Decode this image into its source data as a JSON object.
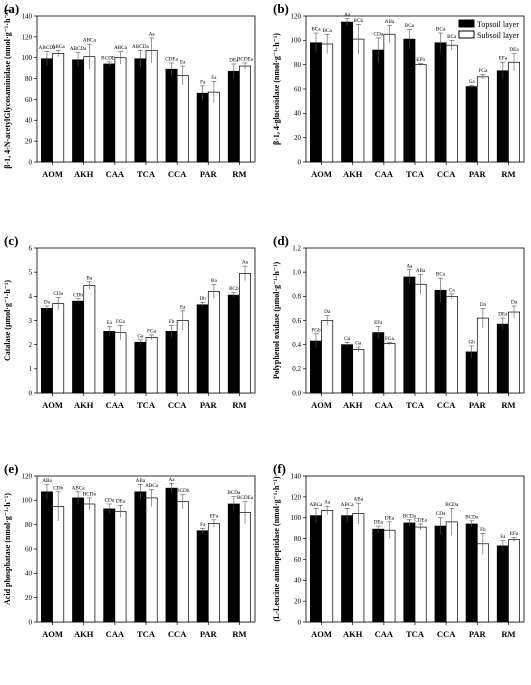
{
  "colors": {
    "topsoil": "#000000",
    "subsoil": "#ffffff",
    "axis": "#000000"
  },
  "legend": {
    "entries": [
      "Topsoil layer",
      "Subsoil layer"
    ],
    "placement": "top-right of panel (b)"
  },
  "chart_data": [
    {
      "type": "bar",
      "panel": "(a)",
      "ylabel": "β-1, 4-N-acetylGlycosaminidase (nmol·g⁻¹·h⁻¹)",
      "ylim": [
        0,
        140
      ],
      "yticks": [
        0,
        20,
        40,
        60,
        80,
        100,
        120,
        140
      ],
      "categories": [
        "AOM",
        "AKH",
        "CAA",
        "TCA",
        "CCA",
        "PAR",
        "RM"
      ],
      "series": [
        {
          "name": "Topsoil layer",
          "values": [
            99,
            98,
            94,
            99,
            89,
            66,
            87
          ],
          "errors": [
            7,
            7,
            2,
            8,
            6,
            7,
            7
          ],
          "letters": [
            "ABCDa",
            "ABCDa",
            "BCDEa",
            "ABCDa",
            "CDEa",
            "Fa",
            "DEa"
          ]
        },
        {
          "name": "Subsoil layer",
          "values": [
            104,
            101,
            100,
            107,
            83,
            67,
            92
          ],
          "errors": [
            3,
            12,
            6,
            12,
            9,
            10,
            3
          ],
          "letters": [
            "ABCa",
            "ABCa",
            "ABCa",
            "Aa",
            "Ea",
            "Fa",
            "BCDEa"
          ]
        }
      ]
    },
    {
      "type": "bar",
      "panel": "(b)",
      "ylabel": "β-1, 4-glucosidase (nmol·g⁻¹·h⁻¹)",
      "ylim": [
        0,
        120
      ],
      "yticks": [
        0,
        20,
        40,
        60,
        80,
        100,
        120
      ],
      "categories": [
        "AOM",
        "AKH",
        "CAA",
        "TCA",
        "CCA",
        "PAR",
        "RM"
      ],
      "series": [
        {
          "name": "Topsoil layer",
          "values": [
            98,
            115,
            92,
            101,
            98,
            62,
            75
          ],
          "errors": [
            8,
            3,
            10,
            8,
            8,
            1,
            7
          ],
          "letters": [
            "BCa",
            "Aa",
            "CDa",
            "BCa",
            "BCa",
            "Ga",
            "EFa"
          ]
        },
        {
          "name": "Subsoil layer",
          "values": [
            97,
            101,
            105,
            80,
            96,
            70,
            82
          ],
          "errors": [
            8,
            12,
            7,
            1,
            4,
            2,
            7
          ],
          "letters": [
            "BCa",
            "BCb",
            "ABa",
            "EFb",
            "BCa",
            "FGa",
            "DEa"
          ]
        }
      ]
    },
    {
      "type": "bar",
      "panel": "(c)",
      "ylabel": "Catalase (μmol·g⁻¹·h⁻¹)",
      "ylim": [
        0,
        6
      ],
      "yticks": [
        0,
        1,
        2,
        3,
        4,
        5,
        6
      ],
      "categories": [
        "AOM",
        "AKH",
        "CAA",
        "TCA",
        "CCA",
        "PAR",
        "RM"
      ],
      "series": [
        {
          "name": "Topsoil layer",
          "values": [
            3.5,
            3.8,
            2.55,
            2.1,
            2.55,
            3.65,
            4.05
          ],
          "errors": [
            0.1,
            0.1,
            0.2,
            0.1,
            0.25,
            0.1,
            0.1
          ],
          "letters": [
            "Da",
            "CDb",
            "Fa",
            "Ga",
            "Fb",
            "Db",
            "BCb"
          ]
        },
        {
          "name": "Subsoil layer",
          "values": [
            3.7,
            4.45,
            2.5,
            2.3,
            3.0,
            4.2,
            4.95
          ],
          "errors": [
            0.25,
            0.15,
            0.3,
            0.1,
            0.4,
            0.3,
            0.3
          ],
          "letters": [
            "CDa",
            "Ba",
            "FGa",
            "FGa",
            "Ea",
            "Ba",
            "Aa"
          ]
        }
      ]
    },
    {
      "type": "bar",
      "panel": "(d)",
      "ylabel": "Polyphenol oxidase (μmol·g⁻¹·h⁻¹)",
      "ylim": [
        0,
        1.2
      ],
      "yticks": [
        0.0,
        0.2,
        0.4,
        0.6,
        0.8,
        1.0,
        1.2
      ],
      "categories": [
        "AOM",
        "AKH",
        "CAA",
        "TCA",
        "CCA",
        "PAR",
        "RM"
      ],
      "series": [
        {
          "name": "Topsoil layer",
          "values": [
            0.43,
            0.4,
            0.5,
            0.96,
            0.85,
            0.34,
            0.57
          ],
          "errors": [
            0.06,
            0.02,
            0.05,
            0.06,
            0.1,
            0.05,
            0.05
          ],
          "letters": [
            "FGb",
            "Ga",
            "EFa",
            "Aa",
            "BCa",
            "Gb",
            "DEa"
          ]
        },
        {
          "name": "Subsoil layer",
          "values": [
            0.6,
            0.36,
            0.41,
            0.9,
            0.8,
            0.62,
            0.67
          ],
          "errors": [
            0.04,
            0.02,
            0.01,
            0.08,
            0.02,
            0.08,
            0.05
          ],
          "letters": [
            "Da",
            "Ga",
            "FGa",
            "ABa",
            "Ca",
            "Da",
            "Da"
          ]
        }
      ]
    },
    {
      "type": "bar",
      "panel": "(e)",
      "ylabel": "Acid phosphatase (nmol·g⁻¹·h⁻¹)",
      "ylim": [
        0,
        120
      ],
      "yticks": [
        0,
        20,
        40,
        60,
        80,
        100,
        120
      ],
      "categories": [
        "AOM",
        "AKH",
        "CAA",
        "TCA",
        "CCA",
        "PAR",
        "RM"
      ],
      "series": [
        {
          "name": "Topsoil layer",
          "values": [
            107,
            102,
            93,
            107,
            110,
            75,
            97
          ],
          "errors": [
            6,
            5,
            4,
            6,
            4,
            2,
            6
          ],
          "letters": [
            "ABa",
            "ABCa",
            "CDa",
            "ABa",
            "Aa",
            "Fa",
            "BCDa"
          ]
        },
        {
          "name": "Subsoil layer",
          "values": [
            95,
            97,
            91,
            102,
            99,
            81,
            90
          ],
          "errors": [
            12,
            5,
            5,
            7,
            6,
            3,
            9
          ],
          "letters": [
            "CDb",
            "BCDa",
            "DEa",
            "ABCa",
            "BCDb",
            "EFa",
            "BCDEa"
          ]
        }
      ]
    },
    {
      "type": "bar",
      "panel": "(f)",
      "ylabel": "(L-Leucine aminopeptidase (nmol·g⁻¹·h⁻¹)",
      "ylim": [
        0,
        140
      ],
      "yticks": [
        0,
        20,
        40,
        60,
        80,
        100,
        120,
        140
      ],
      "categories": [
        "AOM",
        "AKH",
        "CAA",
        "TCA",
        "CCA",
        "PAR",
        "RM"
      ],
      "series": [
        {
          "name": "Topsoil layer",
          "values": [
            102,
            102,
            89,
            95,
            92,
            94,
            73
          ],
          "errors": [
            7,
            7,
            3,
            3,
            8,
            3,
            5
          ],
          "letters": [
            "ABCa",
            "ABCa",
            "DEa",
            "BCDa",
            "CDa",
            "BCDa",
            "Fa"
          ]
        },
        {
          "name": "Subsoil layer",
          "values": [
            107,
            104,
            88,
            91,
            96,
            75,
            79
          ],
          "errors": [
            4,
            10,
            8,
            3,
            13,
            10,
            2
          ],
          "letters": [
            "Aa",
            "ABa",
            "DEa",
            "CDEa",
            "BCDa",
            "Fb",
            "EFa"
          ]
        }
      ]
    }
  ]
}
